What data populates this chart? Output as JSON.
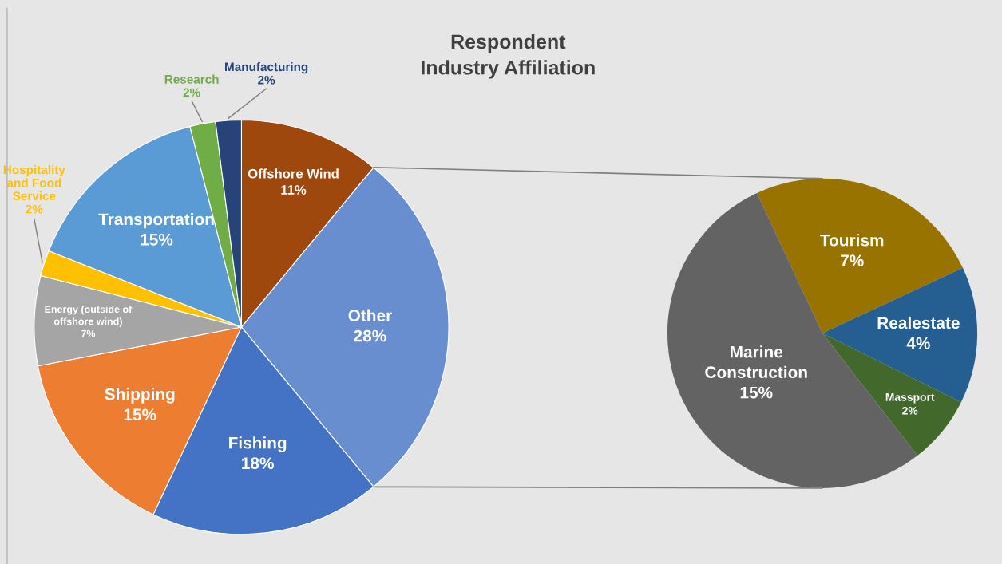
{
  "chart_data": [
    {
      "type": "pie",
      "title": "Respondent\nIndustry Affiliation",
      "categories": [
        "Offshore Wind",
        "Other",
        "Fishing",
        "Shipping",
        "Energy (outside of\noffshore wind)",
        "Hospitality\nand Food\nService",
        "Transportation",
        "Research",
        "Manufacturing"
      ],
      "values": [
        11,
        28,
        18,
        15,
        7,
        2,
        15,
        2,
        2
      ],
      "value_labels": [
        "11%",
        "28%",
        "18%",
        "15%",
        "7%",
        "2%",
        "15%",
        "2%",
        "2%"
      ],
      "colors": [
        "#9e480e",
        "#698ed0",
        "#4472c4",
        "#ed7d31",
        "#a5a5a5",
        "#ffc000",
        "#5b9bd5",
        "#70ad47",
        "#264478"
      ]
    },
    {
      "type": "pie",
      "categories": [
        "Tourism",
        "Realestate",
        "Massport",
        "Marine\nConstruction"
      ],
      "values": [
        7,
        4,
        2,
        15
      ],
      "value_labels": [
        "7%",
        "4%",
        "2%",
        "15%"
      ],
      "colors": [
        "#997300",
        "#255e91",
        "#43682b",
        "#636363"
      ]
    }
  ]
}
